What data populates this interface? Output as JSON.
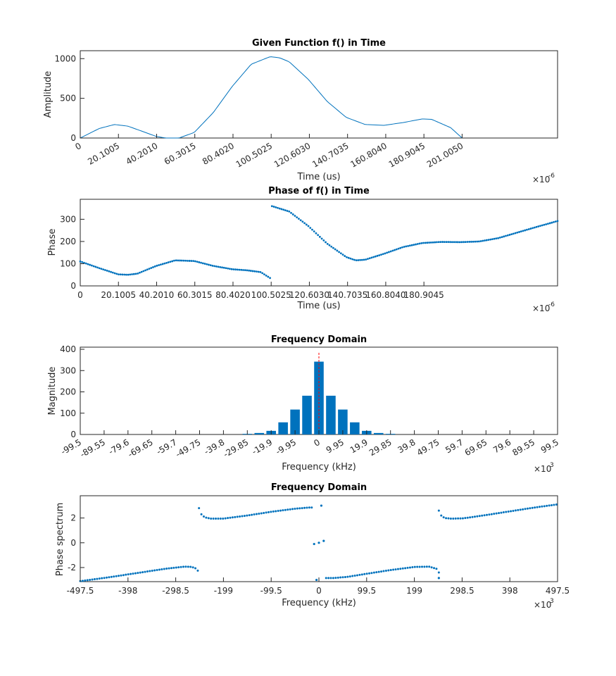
{
  "chart_data": [
    {
      "type": "line",
      "title": "Given Function f() in Time",
      "xlabel": "Time (us)",
      "ylabel": "Amplitude",
      "exponent": {
        "base": "×10",
        "power": "-6"
      },
      "xlim": [
        0,
        251.2563
      ],
      "ylim": [
        0,
        1100
      ],
      "xticks": [
        "0",
        "20.1005",
        "40.2010",
        "60.3015",
        "80.4020",
        "100.5025",
        "120.6030",
        "140.7035",
        "160.8040",
        "180.9045",
        "201.0050"
      ],
      "xtick_values": [
        0,
        20.1005,
        40.201,
        60.3015,
        80.402,
        100.5025,
        120.603,
        140.7035,
        160.804,
        180.9045,
        201.005
      ],
      "yticks": [
        "0",
        "500",
        "1000"
      ],
      "ytick_values": [
        0,
        500,
        1000
      ],
      "color": "#0072BD",
      "x": [
        0,
        10,
        18,
        25,
        32,
        40,
        45,
        52,
        60,
        70,
        80,
        90,
        100,
        105,
        110,
        120,
        130,
        140,
        150,
        160,
        170,
        180,
        185,
        195,
        201
      ],
      "y": [
        0,
        120,
        170,
        150,
        90,
        20,
        0,
        0,
        70,
        320,
        650,
        930,
        1025,
        1010,
        960,
        740,
        460,
        260,
        170,
        160,
        195,
        240,
        235,
        130,
        0
      ]
    },
    {
      "type": "scatter",
      "title": "Phase of f() in Time",
      "xlabel": "Time (us)",
      "ylabel": "Phase",
      "exponent": {
        "base": "×10",
        "power": "-6"
      },
      "xlim": [
        0,
        251.2563
      ],
      "ylim": [
        0,
        390
      ],
      "xticks": [
        "0",
        "20.1005",
        "40.2010",
        "60.3015",
        "80.4020",
        "100.5025",
        "120.6030",
        "140.7035",
        "160.8040",
        "180.9045"
      ],
      "xtick_values": [
        0,
        20.1005,
        40.201,
        60.3015,
        80.402,
        100.5025,
        120.603,
        140.7035,
        160.804,
        180.9045
      ],
      "yticks": [
        "0",
        "100",
        "200",
        "300"
      ],
      "ytick_values": [
        0,
        100,
        200,
        300
      ],
      "color": "#0072BD",
      "curve_x": [
        0,
        10,
        20,
        25,
        30,
        40,
        50,
        60,
        70,
        80,
        88,
        95,
        100,
        100.5025,
        100.6,
        110,
        120,
        130,
        140,
        145,
        150,
        160,
        170,
        180,
        190,
        200,
        210,
        220,
        230,
        240,
        251.2563
      ],
      "curve_y": [
        110,
        80,
        52,
        50,
        55,
        90,
        115,
        112,
        90,
        75,
        70,
        62,
        35,
        5,
        360,
        335,
        270,
        190,
        130,
        115,
        118,
        145,
        175,
        193,
        198,
        197,
        200,
        215,
        240,
        265,
        292
      ],
      "n_points": 250
    },
    {
      "type": "bar",
      "title": "Frequency Domain",
      "xlabel": "Frequency (kHz)",
      "ylabel": "Magnitude",
      "exponent": {
        "base": "×10",
        "power": "3"
      },
      "xlim": [
        -99.5,
        99.5
      ],
      "ylim": [
        0,
        410
      ],
      "xticks": [
        "-99.5",
        "-89.55",
        "-79.6",
        "-69.65",
        "-59.7",
        "-49.75",
        "-39.8",
        "-29.85",
        "-19.9",
        "-9.95",
        "0",
        "9.95",
        "19.9",
        "29.85",
        "39.8",
        "49.75",
        "59.7",
        "69.65",
        "79.6",
        "89.55",
        "99.5"
      ],
      "xtick_values": [
        -99.5,
        -89.55,
        -79.6,
        -69.65,
        -59.7,
        -49.75,
        -39.8,
        -29.85,
        -19.9,
        -9.95,
        0,
        9.95,
        19.9,
        29.85,
        39.8,
        49.75,
        59.7,
        69.65,
        79.6,
        89.55,
        99.5
      ],
      "yticks": [
        "0",
        "100",
        "200",
        "300",
        "400"
      ],
      "ytick_values": [
        0,
        100,
        200,
        300,
        400
      ],
      "color": "#0072BD",
      "marker_color": "#FF0000",
      "marker_x": 0,
      "x": [
        -29.85,
        -24.875,
        -19.9,
        -14.925,
        -9.95,
        -4.975,
        0,
        4.975,
        9.95,
        14.925,
        19.9,
        24.875,
        29.85
      ],
      "values": [
        3,
        7,
        17,
        57,
        117,
        182,
        342,
        182,
        117,
        57,
        17,
        7,
        3
      ]
    },
    {
      "type": "scatter",
      "title": "Frequency Domain",
      "xlabel": "Frequency (kHz)",
      "ylabel": "Phase spectrum",
      "exponent": {
        "base": "×10",
        "power": "3"
      },
      "xlim": [
        -497.5,
        497.5
      ],
      "ylim": [
        -3.14,
        3.8
      ],
      "xticks": [
        "-497.5",
        "-398",
        "-298.5",
        "-199",
        "-99.5",
        "0",
        "99.5",
        "199",
        "298.5",
        "398",
        "497.5"
      ],
      "xtick_values": [
        -497.5,
        -398,
        -298.5,
        -199,
        -99.5,
        0,
        99.5,
        199,
        298.5,
        398,
        497.5
      ],
      "yticks": [
        "-2",
        "0",
        "2"
      ],
      "ytick_values": [
        -2,
        0,
        2
      ],
      "color": "#0072BD",
      "segments": [
        {
          "x": [
            -497.5,
            -440,
            -380,
            -320,
            -280,
            -265,
            -255,
            -250
          ],
          "y": [
            -3.1,
            -2.8,
            -2.45,
            -2.1,
            -1.93,
            -1.95,
            -2.1,
            -2.4
          ]
        },
        {
          "x": [
            -250,
            -245,
            -238,
            -225,
            -200,
            -150,
            -100,
            -50,
            -20,
            -15
          ],
          "y": [
            2.8,
            2.3,
            2.05,
            1.95,
            1.95,
            2.2,
            2.5,
            2.75,
            2.85,
            2.85
          ]
        },
        {
          "x": [
            15,
            30,
            60,
            100,
            150,
            200,
            230,
            245,
            250
          ],
          "y": [
            -2.85,
            -2.85,
            -2.75,
            -2.5,
            -2.2,
            -1.95,
            -1.93,
            -2.1,
            -2.4
          ]
        },
        {
          "x": [
            250,
            255,
            262,
            275,
            300,
            350,
            400,
            450,
            497.5
          ],
          "y": [
            2.6,
            2.2,
            2.0,
            1.95,
            1.97,
            2.25,
            2.55,
            2.85,
            3.1
          ]
        }
      ],
      "segment_spacing": 5,
      "isolated_x": [
        -10,
        -5,
        0,
        5,
        10,
        250
      ],
      "isolated_y": [
        -0.1,
        -3.0,
        0.0,
        3.0,
        0.15,
        -2.85
      ]
    }
  ]
}
